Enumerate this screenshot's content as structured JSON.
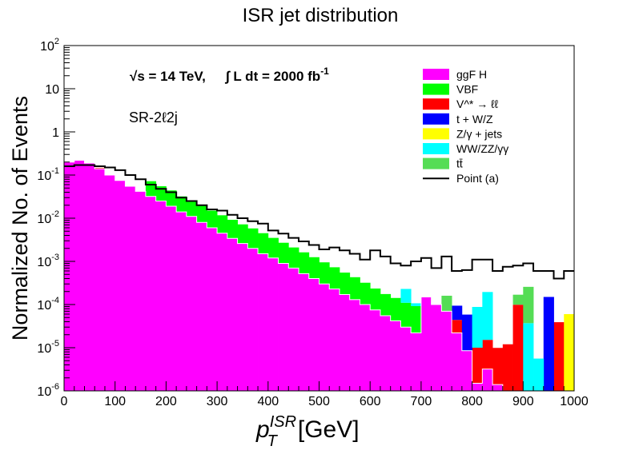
{
  "chart_data": {
    "type": "bar",
    "stacked": true,
    "title": "ISR jet distribution",
    "xlabel": "p_T^{ISR} [GeV]",
    "xlabel_parts": {
      "base": "p",
      "sub": "T",
      "sup": "ISR",
      "unit": "[GeV]"
    },
    "ylabel": "Normalized No. of Events",
    "x_range": [
      0,
      1000
    ],
    "y_range": [
      1e-06,
      100
    ],
    "y_scale": "log",
    "x_ticks": [
      "0",
      "100",
      "200",
      "300",
      "400",
      "500",
      "600",
      "700",
      "800",
      "900",
      "1000"
    ],
    "y_ticks": [
      {
        "base": "10",
        "exp": "-6"
      },
      {
        "base": "10",
        "exp": "-5"
      },
      {
        "base": "10",
        "exp": "-4"
      },
      {
        "base": "10",
        "exp": "-3"
      },
      {
        "base": "10",
        "exp": "-2"
      },
      {
        "base": "10",
        "exp": "-1"
      },
      {
        "base": "1",
        "exp": ""
      },
      {
        "base": "10",
        "exp": ""
      },
      {
        "base": "10",
        "exp": "2"
      }
    ],
    "annotations": {
      "energy": "√s = 14 TeV,",
      "lumi": "∫ L dt = 2000 fb",
      "lumi_exp": "-1",
      "region": "SR-2ℓ2j"
    },
    "bin_width": 20,
    "bin_edges": [
      0,
      20,
      40,
      60,
      80,
      100,
      120,
      140,
      160,
      180,
      200,
      220,
      240,
      260,
      280,
      300,
      320,
      340,
      360,
      380,
      400,
      420,
      440,
      460,
      480,
      500,
      520,
      540,
      560,
      580,
      600,
      620,
      640,
      660,
      680,
      700,
      720,
      740,
      760,
      780,
      800,
      820,
      840,
      860,
      880,
      900,
      920,
      940,
      960,
      980,
      1000
    ],
    "series": [
      {
        "name": "ggF H",
        "color": "#ff00ff",
        "values": [
          0.2,
          0.22,
          0.19,
          0.14,
          0.1,
          0.075,
          0.055,
          0.042,
          0.032,
          0.025,
          0.019,
          0.014,
          0.011,
          0.008,
          0.006,
          0.0045,
          0.0034,
          0.0026,
          0.002,
          0.0015,
          0.0012,
          0.0009,
          0.0007,
          0.00052,
          0.0004,
          0.0003,
          0.00023,
          0.00017,
          0.00013,
          0.0001,
          7.5e-05,
          5.5e-05,
          4.2e-05,
          3e-05,
          2.2e-05,
          0.00015,
          0.0001,
          7e-05,
          2.2e-05,
          8.5e-06,
          1.5e-06,
          3.2e-06,
          1.4e-06,
          0,
          0,
          0,
          0,
          0,
          0,
          0
        ]
      },
      {
        "name": "VBF",
        "color": "#00ff00",
        "values": [
          0,
          0,
          0,
          0,
          0,
          0,
          0,
          0,
          0.04,
          0.03,
          0.025,
          0.018,
          0.015,
          0.012,
          0.009,
          0.0072,
          0.0058,
          0.0046,
          0.0038,
          0.003,
          0.0023,
          0.0018,
          0.0014,
          0.0011,
          0.00085,
          0.00065,
          0.0005,
          0.00038,
          0.0003,
          0.00022,
          0.00016,
          0.00012,
          0.0001,
          8e-05,
          7e-05,
          0,
          0,
          0,
          0,
          0,
          0,
          0,
          0,
          0,
          0,
          0,
          0,
          0,
          0,
          0
        ]
      },
      {
        "name": "V^* → ℓℓ",
        "color": "#ff0000",
        "values": [
          0,
          0,
          0,
          0.0072,
          0,
          0,
          0,
          0,
          0,
          0,
          0,
          0,
          0,
          0,
          0,
          0,
          0,
          0,
          0,
          0,
          0,
          0,
          0,
          0,
          0,
          0,
          0,
          0,
          0,
          0,
          0,
          0,
          0,
          0,
          0,
          0,
          0,
          0,
          2.2e-05,
          0,
          8.5e-06,
          1.2e-05,
          8.5e-06,
          1.2e-05,
          9.9e-05,
          0,
          0,
          0,
          3.9e-05,
          0
        ]
      },
      {
        "name": "t + W/Z",
        "color": "#0000ff",
        "values": [
          0,
          0,
          0,
          0,
          0,
          0,
          0,
          0,
          0,
          0,
          0,
          0,
          0,
          0,
          0,
          0,
          0,
          0,
          0,
          0,
          0,
          0,
          0,
          0,
          0,
          0,
          0,
          0,
          0,
          0,
          0,
          0,
          0,
          0,
          0,
          0,
          0,
          0,
          5e-05,
          5e-05,
          0,
          0,
          0,
          0,
          0,
          0,
          0,
          0.00015,
          0,
          0
        ]
      },
      {
        "name": "Z/γ + jets",
        "color": "#ffff00",
        "values": [
          0,
          0,
          0,
          0,
          0,
          0,
          0,
          0,
          0,
          0,
          0,
          0,
          0,
          0,
          0,
          0,
          0,
          0,
          0,
          0,
          0,
          0,
          0,
          0,
          0,
          0,
          0,
          0,
          0,
          0,
          0,
          0,
          0,
          0,
          0,
          0,
          0,
          0,
          0,
          0,
          0,
          0,
          0,
          0,
          0,
          0,
          0,
          0,
          0,
          6e-05
        ]
      },
      {
        "name": "WW/ZZ/γγ",
        "color": "#00ffff",
        "values": [
          0,
          0,
          0,
          0,
          0,
          0,
          0,
          0,
          0,
          0,
          0,
          0,
          0,
          0,
          0,
          0,
          0,
          0,
          0,
          0,
          0,
          0,
          0,
          0,
          0,
          0,
          0,
          0,
          0,
          0,
          0,
          0,
          0,
          0.00012,
          1.5e-05,
          0,
          0,
          0,
          0,
          0,
          7.8e-05,
          0.00018,
          0,
          0,
          0,
          3.7e-05,
          5.6e-06,
          0,
          0,
          0
        ]
      },
      {
        "name": "tt̄",
        "color": "#55dd55",
        "values": [
          0,
          0,
          0,
          0,
          0,
          0,
          0,
          0,
          0,
          0,
          0,
          0,
          0,
          0,
          0,
          0,
          0,
          0,
          0,
          0,
          0,
          0,
          0,
          0,
          0,
          0,
          0,
          0,
          0,
          0,
          0,
          0,
          0,
          0,
          0,
          0,
          0,
          9e-05,
          0,
          0,
          0,
          0,
          0,
          0,
          7e-05,
          0.00022,
          0,
          0,
          0,
          0
        ]
      },
      {
        "name": "Point (a)",
        "color": "#000000",
        "style": "line",
        "values": [
          0.16,
          0.17,
          0.17,
          0.16,
          0.15,
          0.13,
          0.1,
          0.08,
          0.06,
          0.048,
          0.04,
          0.03,
          0.025,
          0.02,
          0.016,
          0.015,
          0.012,
          0.01,
          0.0085,
          0.0075,
          0.0052,
          0.0044,
          0.0035,
          0.0029,
          0.0024,
          0.0019,
          0.0021,
          0.0018,
          0.0015,
          0.0011,
          0.0018,
          0.0013,
          0.0009,
          0.0008,
          0.001,
          0.0012,
          0.0007,
          0.0013,
          0.0006,
          0.00063,
          0.0011,
          0.0011,
          0.0006,
          0.00075,
          0.0008,
          0.0009,
          0.0006,
          0.0006,
          0.0004,
          0.0006
        ]
      }
    ],
    "legend_position": "top-right"
  }
}
